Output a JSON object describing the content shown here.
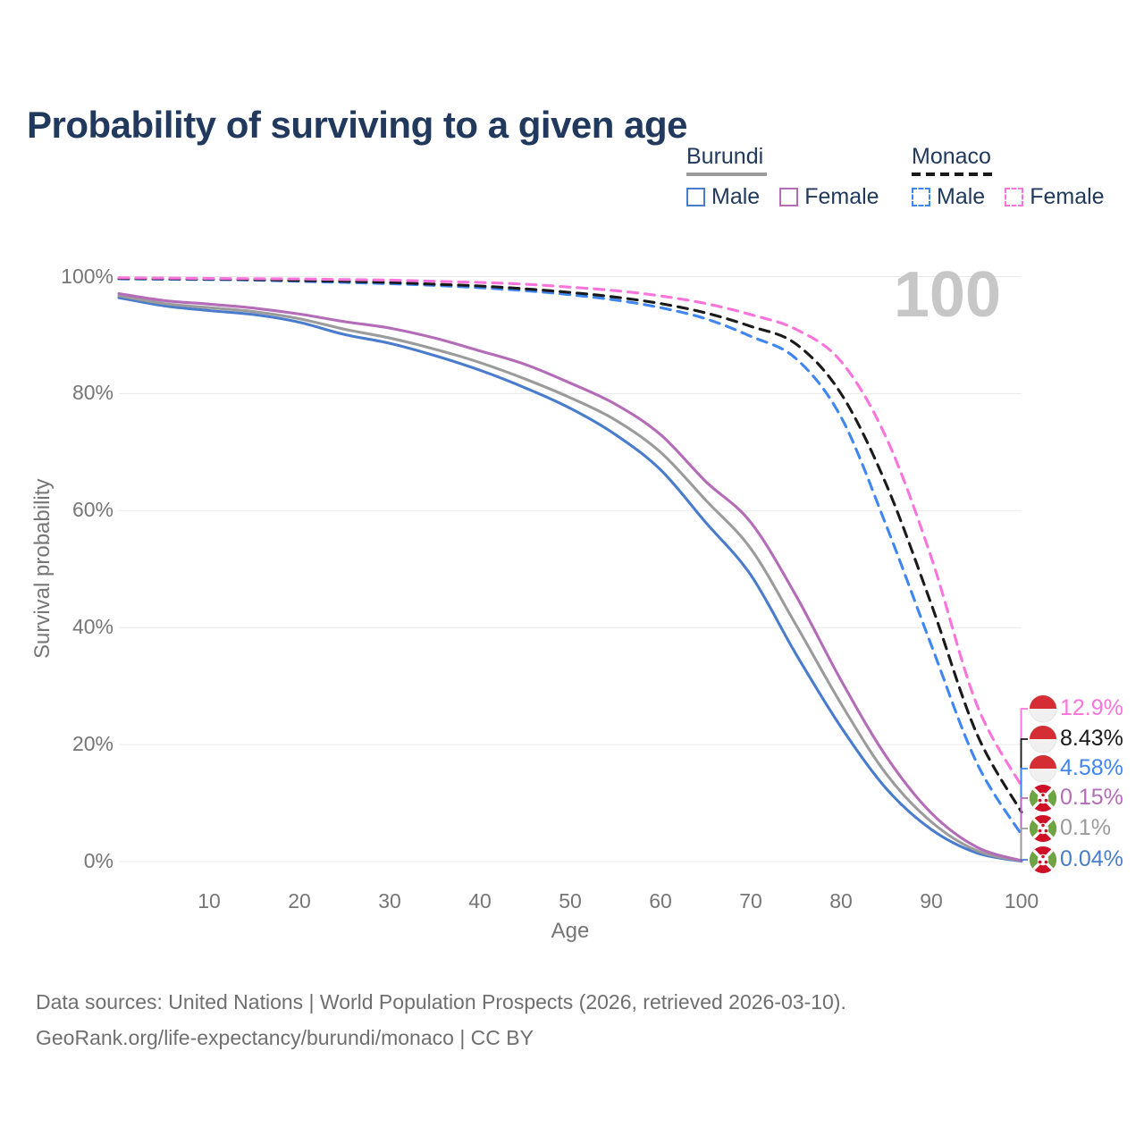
{
  "title": "Probability of surviving to a given age",
  "watermark_age": "100",
  "legend": {
    "groups": [
      {
        "country": "Burundi",
        "line_style": "solid",
        "underline_color": "#9b9b9b",
        "items": [
          {
            "label": "Male",
            "color": "#4a7ccd"
          },
          {
            "label": "Female",
            "color": "#b46cb8"
          }
        ]
      },
      {
        "country": "Monaco",
        "line_style": "dashed",
        "underline_color": "#1a1a1a",
        "items": [
          {
            "label": "Male",
            "color": "#3f86f2"
          },
          {
            "label": "Female",
            "color": "#fb74dc"
          }
        ]
      }
    ]
  },
  "axes": {
    "x_label": "Age",
    "y_label": "Survival probability",
    "x_ticks": [
      {
        "label": "10",
        "value": 10
      },
      {
        "label": "20",
        "value": 20
      },
      {
        "label": "30",
        "value": 30
      },
      {
        "label": "40",
        "value": 40
      },
      {
        "label": "50",
        "value": 50
      },
      {
        "label": "60",
        "value": 60
      },
      {
        "label": "70",
        "value": 70
      },
      {
        "label": "80",
        "value": 80
      },
      {
        "label": "90",
        "value": 90
      },
      {
        "label": "100",
        "value": 100
      }
    ],
    "y_ticks": [
      {
        "label": "0%",
        "value": 0
      },
      {
        "label": "20%",
        "value": 20
      },
      {
        "label": "40%",
        "value": 40
      },
      {
        "label": "60%",
        "value": 60
      },
      {
        "label": "80%",
        "value": 80
      },
      {
        "label": "100%",
        "value": 100
      }
    ]
  },
  "end_labels": [
    {
      "value": "12.9%",
      "color": "#fb74dc",
      "flag": "monaco",
      "series": "Monaco Female"
    },
    {
      "value": "8.43%",
      "color": "#1a1a1a",
      "flag": "monaco",
      "series": "Monaco (both sexes)"
    },
    {
      "value": "4.58%",
      "color": "#3f86f2",
      "flag": "monaco",
      "series": "Monaco Male"
    },
    {
      "value": "0.15%",
      "color": "#b46cb8",
      "flag": "burundi",
      "series": "Burundi Female"
    },
    {
      "value": "0.1%",
      "color": "#9b9b9b",
      "flag": "burundi",
      "series": "Burundi (both sexes)"
    },
    {
      "value": "0.04%",
      "color": "#4a7ccd",
      "flag": "burundi",
      "series": "Burundi Male"
    }
  ],
  "footer": {
    "line1": "Data sources: United Nations | World Population Prospects (2026, retrieved 2026-03-10).",
    "line2": "GeoRank.org/life-expectancy/burundi/monaco | CC BY"
  },
  "chart_data": {
    "type": "line",
    "title": "Probability of surviving to a given age",
    "xlabel": "Age",
    "ylabel": "Survival probability",
    "xlim": [
      0,
      100
    ],
    "ylim": [
      0,
      100
    ],
    "grid": "horizontal, every 20%",
    "legend_position": "top-right",
    "x": [
      0,
      5,
      10,
      15,
      20,
      25,
      30,
      35,
      40,
      45,
      50,
      55,
      60,
      65,
      70,
      75,
      80,
      85,
      90,
      95,
      100
    ],
    "series": [
      {
        "name": "Burundi Male",
        "country": "Burundi",
        "sex": "Male",
        "line": "solid",
        "color": "#4a7ccd",
        "end_label": "0.04%",
        "values": [
          96.4,
          95.0,
          94.2,
          93.5,
          92.2,
          90.1,
          88.6,
          86.5,
          84.0,
          81.0,
          77.5,
          73.0,
          67.0,
          58.0,
          49.0,
          35.5,
          23.0,
          12.5,
          5.5,
          1.5,
          0.04
        ]
      },
      {
        "name": "Burundi (both sexes)",
        "country": "Burundi",
        "sex": "Both",
        "line": "solid",
        "color": "#9b9b9b",
        "end_label": "0.1%",
        "values": [
          96.75,
          95.4,
          94.7,
          94.0,
          92.8,
          91.0,
          89.5,
          87.6,
          85.3,
          82.5,
          79.3,
          75.5,
          70.0,
          61.8,
          53.5,
          40.5,
          27.0,
          15.0,
          6.8,
          1.9,
          0.1
        ]
      },
      {
        "name": "Burundi Female",
        "country": "Burundi",
        "sex": "Female",
        "line": "solid",
        "color": "#b46cb8",
        "end_label": "0.15%",
        "values": [
          97.1,
          95.9,
          95.3,
          94.6,
          93.6,
          92.3,
          91.2,
          89.5,
          87.3,
          85.0,
          81.8,
          78.2,
          73.0,
          65.0,
          58.0,
          45.5,
          31.0,
          18.0,
          8.3,
          2.5,
          0.15
        ]
      },
      {
        "name": "Monaco Male",
        "country": "Monaco",
        "sex": "Male",
        "line": "dashed",
        "color": "#3f86f2",
        "end_label": "4.58%",
        "values": [
          99.6,
          99.55,
          99.5,
          99.4,
          99.2,
          99.0,
          98.8,
          98.5,
          98.1,
          97.6,
          96.9,
          96.0,
          94.7,
          92.8,
          89.8,
          86.0,
          76.0,
          57.5,
          37.0,
          17.0,
          4.58
        ]
      },
      {
        "name": "Monaco (both sexes)",
        "country": "Monaco",
        "sex": "Both",
        "line": "dashed",
        "color": "#1a1a1a",
        "end_label": "8.43%",
        "values": [
          99.7,
          99.65,
          99.6,
          99.5,
          99.35,
          99.2,
          99.0,
          98.7,
          98.4,
          97.9,
          97.3,
          96.5,
          95.4,
          93.8,
          91.5,
          88.5,
          80.0,
          64.5,
          44.0,
          22.0,
          8.43
        ]
      },
      {
        "name": "Monaco Female",
        "country": "Monaco",
        "sex": "Female",
        "line": "dashed",
        "color": "#fb74dc",
        "end_label": "12.9%",
        "values": [
          99.8,
          99.75,
          99.7,
          99.65,
          99.6,
          99.5,
          99.4,
          99.2,
          99.0,
          98.7,
          98.2,
          97.6,
          96.7,
          95.4,
          93.5,
          91.0,
          85.5,
          72.5,
          52.0,
          27.0,
          12.9
        ]
      }
    ]
  }
}
